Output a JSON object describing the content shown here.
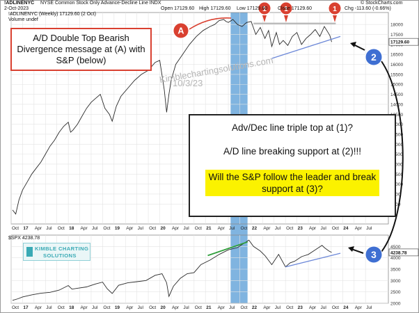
{
  "header": {
    "symbol": "!ADLINENYC",
    "description": "NYSE Common Stock Only Advance-Decline Line INDX",
    "date": "2-Oct-2023",
    "ohlc": "Open 17129.60  High 17129.60  Low 17129.60  Close 17129.60  Volume undef  Chg -113.60 (-0.66%)",
    "ohlc_prefix": "Open 17129.60",
    "ohlc_high": "High 17129.60",
    "ohlc_low": "Low 17129.60",
    "ohlc_close": "Close 17129.60",
    "ohlc_chg": "Chg -113.60 (-0.66%)",
    "copyright": "© StockCharts.com",
    "legend_main": "!ADLINENYC (Weekly) 17129.60 (2 Oct)",
    "legend_vol": "Volume undef",
    "legend_spx": "$SPX 4238.78"
  },
  "watermark": {
    "site": "Kimblechartingsolutions.com",
    "date": "10/3/23"
  },
  "annotations": {
    "callout_a": "A/D Double Top Bearish Divergence message at (A) with S&P (below)",
    "marker_a": "A",
    "marker_1": "1",
    "marker_2": "2",
    "marker_3": "3",
    "box_line1": "Adv/Dec line triple top at (1)?",
    "box_line2": "A/D line breaking support at (2)!!!",
    "box_line3": "Will the S&P follow the leader and break support at (3)?"
  },
  "logo": {
    "line1": "KIMBLE CHARTING",
    "line2": "SOLUTIONS"
  },
  "colors": {
    "line": "#2a2a2a",
    "highlight": "#6aa7db",
    "red": "#d94030",
    "blue": "#3f6fd2",
    "green": "#2e9e3a",
    "grid": "#e3e3e3",
    "support": "#6b87d8",
    "resistance": "#b8b8b8"
  },
  "chart_data": [
    {
      "type": "line",
      "title": "!ADLINENYC (Weekly) 17129.60 (2 Oct)",
      "ylim": [
        8000,
        18600
      ],
      "yticks": [
        9000,
        9500,
        10000,
        10500,
        11000,
        11500,
        12000,
        12500,
        13000,
        13500,
        14000,
        14500,
        15000,
        15500,
        16000,
        16500,
        17000,
        17500,
        18000
      ],
      "ytick_labels": [
        "9000",
        "9500",
        "10000",
        "10500",
        "11000",
        "11500",
        "12000",
        "12500",
        "13000",
        "13500",
        "14000",
        "14500",
        "15000",
        "15500",
        "16000",
        "16500",
        "17000",
        "17500",
        "18000"
      ],
      "last_value_label": "17129.60",
      "xlim": [
        2016.75,
        2025.0
      ],
      "grid": true,
      "x": [
        2016.78,
        2016.85,
        2016.92,
        2017.0,
        2017.1,
        2017.2,
        2017.3,
        2017.4,
        2017.5,
        2017.6,
        2017.7,
        2017.8,
        2017.9,
        2018.0,
        2018.05,
        2018.1,
        2018.2,
        2018.3,
        2018.4,
        2018.5,
        2018.6,
        2018.7,
        2018.8,
        2018.9,
        2018.96,
        2019.05,
        2019.15,
        2019.3,
        2019.45,
        2019.6,
        2019.75,
        2019.9,
        2020.0,
        2020.1,
        2020.15,
        2020.2,
        2020.25,
        2020.35,
        2020.5,
        2020.65,
        2020.8,
        2020.95,
        2021.1,
        2021.2,
        2021.3,
        2021.4,
        2021.45,
        2021.5,
        2021.6,
        2021.7,
        2021.8,
        2021.9,
        2022.0,
        2022.1,
        2022.2,
        2022.3,
        2022.38,
        2022.45,
        2022.55,
        2022.62,
        2022.7,
        2022.8,
        2022.9,
        2023.0,
        2023.1,
        2023.2,
        2023.3,
        2023.4,
        2023.5,
        2023.6,
        2023.68,
        2023.72,
        2023.76
      ],
      "values": [
        8700,
        8500,
        9200,
        9700,
        10100,
        10500,
        10800,
        11100,
        11500,
        11900,
        12200,
        12600,
        12900,
        13100,
        12600,
        12700,
        13000,
        13400,
        13800,
        14100,
        14300,
        14500,
        13800,
        13500,
        13150,
        13900,
        14400,
        14800,
        15200,
        15500,
        15700,
        16100,
        16200,
        14700,
        13600,
        14500,
        15200,
        16000,
        16500,
        17000,
        17400,
        17700,
        17900,
        18000,
        18200,
        18250,
        18150,
        18100,
        18250,
        18000,
        17900,
        18100,
        18150,
        17500,
        17850,
        17300,
        17700,
        16900,
        17600,
        17000,
        17200,
        16950,
        17400,
        17600,
        17000,
        17300,
        17500,
        17750,
        17400,
        17900,
        17600,
        17450,
        17130
      ],
      "series": [
        {
          "name": "!ADLINENYC"
        }
      ]
    },
    {
      "type": "line",
      "title": "$SPX 4238.78",
      "ylim": [
        2000,
        5000
      ],
      "yticks": [
        2000,
        2500,
        3000,
        3500,
        4000,
        4500
      ],
      "ytick_labels": [
        "2000",
        "2500",
        "3000",
        "3500",
        "4000",
        "4500"
      ],
      "last_value_label": "4238.78",
      "xlim": [
        2016.75,
        2025.0
      ],
      "grid": true,
      "x": [
        2016.78,
        2016.9,
        2017.0,
        2017.2,
        2017.4,
        2017.6,
        2017.8,
        2018.0,
        2018.08,
        2018.2,
        2018.4,
        2018.6,
        2018.75,
        2018.85,
        2018.96,
        2019.1,
        2019.3,
        2019.5,
        2019.7,
        2019.9,
        2020.05,
        2020.15,
        2020.2,
        2020.3,
        2020.45,
        2020.6,
        2020.75,
        2020.9,
        2021.1,
        2021.3,
        2021.5,
        2021.7,
        2021.85,
        2021.95,
        2022.05,
        2022.2,
        2022.3,
        2022.45,
        2022.6,
        2022.75,
        2022.85,
        2022.95,
        2023.1,
        2023.25,
        2023.4,
        2023.55,
        2023.6,
        2023.7,
        2023.76
      ],
      "values": [
        2130,
        2200,
        2280,
        2370,
        2440,
        2480,
        2580,
        2780,
        2620,
        2660,
        2720,
        2850,
        2930,
        2640,
        2430,
        2790,
        2900,
        2950,
        3000,
        3230,
        3300,
        2900,
        2300,
        2750,
        3100,
        3300,
        3350,
        3700,
        3900,
        4150,
        4350,
        4450,
        4650,
        4780,
        4500,
        4300,
        4100,
        3700,
        4150,
        3600,
        3780,
        3850,
        4050,
        4150,
        4350,
        4550,
        4450,
        4300,
        4238
      ],
      "series": [
        {
          "name": "$SPX"
        }
      ]
    }
  ],
  "x_axis": {
    "labels": [
      "Oct",
      "17",
      "Apr",
      "Jul",
      "Oct",
      "18",
      "Apr",
      "Jul",
      "Oct",
      "19",
      "Apr",
      "Jul",
      "Oct",
      "20",
      "Apr",
      "Jul",
      "Oct",
      "21",
      "Apr",
      "Jul",
      "Oct",
      "22",
      "Apr",
      "Jul",
      "Oct",
      "23",
      "Apr",
      "Jul",
      "Oct",
      "24",
      "Apr",
      "Jul"
    ],
    "positions": [
      2016.75,
      2017.0,
      2017.25,
      2017.5,
      2017.75,
      2018.0,
      2018.25,
      2018.5,
      2018.75,
      2019.0,
      2019.25,
      2019.5,
      2019.75,
      2020.0,
      2020.25,
      2020.5,
      2020.75,
      2021.0,
      2021.25,
      2021.5,
      2021.75,
      2022.0,
      2022.25,
      2022.5,
      2022.75,
      2023.0,
      2023.25,
      2023.5,
      2023.75,
      2024.0,
      2024.25,
      2024.5
    ]
  }
}
